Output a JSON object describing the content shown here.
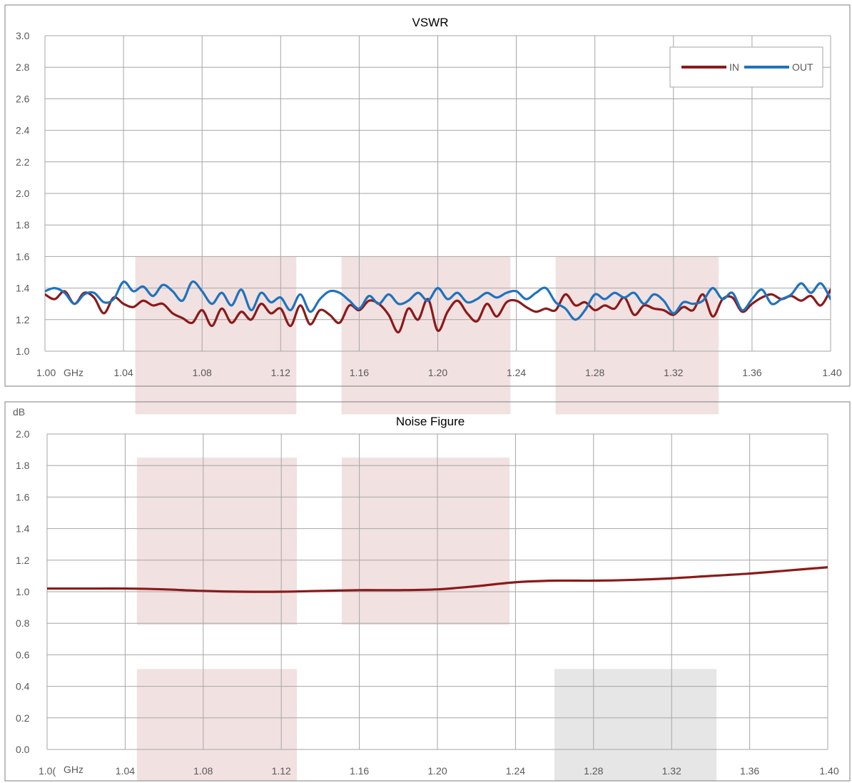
{
  "colors": {
    "in": "#8B1A1A",
    "out": "#1E73BE",
    "grid": "#A6A6A6",
    "frame": "#7F7F7F",
    "band_pink": "#F2E1E1",
    "band_gray": "#E6E6E6"
  },
  "chart_data": [
    {
      "type": "line",
      "title": "VSWR",
      "xunit": "GHz",
      "xlim": [
        1.0,
        1.4
      ],
      "ylim": [
        1.0,
        3.0
      ],
      "xticks": [
        "1.00",
        "1.04",
        "1.08",
        "1.12",
        "1.16",
        "1.20",
        "1.24",
        "1.28",
        "1.32",
        "1.36",
        "1.40"
      ],
      "yticks": [
        "1.0",
        "1.2",
        "1.4",
        "1.6",
        "1.8",
        "2.0",
        "2.2",
        "2.4",
        "2.6",
        "2.8",
        "3.0"
      ],
      "legend": {
        "position": "top-right"
      },
      "series": [
        {
          "name": "IN",
          "color": "#8B1A1A",
          "x": [
            1.0,
            1.005,
            1.01,
            1.015,
            1.02,
            1.025,
            1.03,
            1.035,
            1.04,
            1.045,
            1.05,
            1.055,
            1.06,
            1.065,
            1.07,
            1.075,
            1.08,
            1.085,
            1.09,
            1.095,
            1.1,
            1.105,
            1.11,
            1.115,
            1.12,
            1.125,
            1.13,
            1.135,
            1.14,
            1.145,
            1.15,
            1.155,
            1.16,
            1.165,
            1.17,
            1.175,
            1.18,
            1.185,
            1.19,
            1.195,
            1.2,
            1.205,
            1.21,
            1.215,
            1.22,
            1.225,
            1.23,
            1.235,
            1.24,
            1.245,
            1.25,
            1.255,
            1.26,
            1.265,
            1.27,
            1.275,
            1.28,
            1.285,
            1.29,
            1.295,
            1.3,
            1.305,
            1.31,
            1.315,
            1.32,
            1.325,
            1.33,
            1.335,
            1.34,
            1.345,
            1.35,
            1.355,
            1.36,
            1.365,
            1.37,
            1.375,
            1.38,
            1.385,
            1.39,
            1.395,
            1.4
          ],
          "y": [
            1.36,
            1.33,
            1.38,
            1.3,
            1.37,
            1.34,
            1.24,
            1.34,
            1.3,
            1.28,
            1.32,
            1.29,
            1.3,
            1.24,
            1.21,
            1.18,
            1.26,
            1.16,
            1.27,
            1.18,
            1.25,
            1.2,
            1.3,
            1.24,
            1.27,
            1.16,
            1.29,
            1.17,
            1.26,
            1.23,
            1.18,
            1.29,
            1.26,
            1.32,
            1.3,
            1.23,
            1.12,
            1.27,
            1.2,
            1.33,
            1.13,
            1.25,
            1.32,
            1.24,
            1.19,
            1.3,
            1.22,
            1.31,
            1.32,
            1.28,
            1.25,
            1.27,
            1.26,
            1.36,
            1.29,
            1.31,
            1.26,
            1.29,
            1.27,
            1.34,
            1.23,
            1.29,
            1.27,
            1.26,
            1.23,
            1.28,
            1.26,
            1.36,
            1.22,
            1.33,
            1.34,
            1.25,
            1.3,
            1.34,
            1.36,
            1.33,
            1.35,
            1.32,
            1.35,
            1.29,
            1.39
          ]
        },
        {
          "name": "OUT",
          "color": "#1E73BE",
          "x": [
            1.0,
            1.005,
            1.01,
            1.015,
            1.02,
            1.025,
            1.03,
            1.035,
            1.04,
            1.045,
            1.05,
            1.055,
            1.06,
            1.065,
            1.07,
            1.075,
            1.08,
            1.085,
            1.09,
            1.095,
            1.1,
            1.105,
            1.11,
            1.115,
            1.12,
            1.125,
            1.13,
            1.135,
            1.14,
            1.145,
            1.15,
            1.155,
            1.16,
            1.165,
            1.17,
            1.175,
            1.18,
            1.185,
            1.19,
            1.195,
            1.2,
            1.205,
            1.21,
            1.215,
            1.22,
            1.225,
            1.23,
            1.235,
            1.24,
            1.245,
            1.25,
            1.255,
            1.26,
            1.265,
            1.27,
            1.275,
            1.28,
            1.285,
            1.29,
            1.295,
            1.3,
            1.305,
            1.31,
            1.315,
            1.32,
            1.325,
            1.33,
            1.335,
            1.34,
            1.345,
            1.35,
            1.355,
            1.36,
            1.365,
            1.37,
            1.375,
            1.38,
            1.385,
            1.39,
            1.395,
            1.4
          ],
          "y": [
            1.38,
            1.4,
            1.37,
            1.3,
            1.36,
            1.37,
            1.31,
            1.33,
            1.44,
            1.38,
            1.41,
            1.35,
            1.42,
            1.38,
            1.32,
            1.44,
            1.38,
            1.3,
            1.37,
            1.29,
            1.39,
            1.26,
            1.37,
            1.31,
            1.34,
            1.26,
            1.36,
            1.25,
            1.33,
            1.38,
            1.37,
            1.32,
            1.27,
            1.35,
            1.3,
            1.36,
            1.3,
            1.32,
            1.37,
            1.32,
            1.4,
            1.33,
            1.37,
            1.31,
            1.33,
            1.37,
            1.34,
            1.37,
            1.38,
            1.33,
            1.37,
            1.4,
            1.31,
            1.27,
            1.2,
            1.26,
            1.36,
            1.33,
            1.37,
            1.34,
            1.37,
            1.3,
            1.36,
            1.32,
            1.24,
            1.31,
            1.3,
            1.32,
            1.4,
            1.33,
            1.37,
            1.26,
            1.33,
            1.39,
            1.3,
            1.33,
            1.36,
            1.43,
            1.37,
            1.43,
            1.33
          ]
        }
      ],
      "bands": [
        {
          "x": [
            1.046,
            1.128
          ],
          "y": [
            0.6,
            1.6
          ],
          "color": "pink"
        },
        {
          "x": [
            1.151,
            1.237
          ],
          "y": [
            0.6,
            1.6
          ],
          "color": "pink"
        },
        {
          "x": [
            1.26,
            1.343
          ],
          "y": [
            0.6,
            1.6
          ],
          "color": "pink"
        }
      ]
    },
    {
      "type": "line",
      "title": "Noise Figure",
      "ylabel": "dB",
      "xunit": "GHz",
      "xlim": [
        1.0,
        1.4
      ],
      "ylim": [
        0.0,
        2.0
      ],
      "xticks": [
        "1.0(",
        "1.04",
        "1.08",
        "1.12",
        "1.16",
        "1.20",
        "1.24",
        "1.28",
        "1.32",
        "1.36",
        "1.40"
      ],
      "yticks": [
        "0.0",
        "0.2",
        "0.4",
        "0.6",
        "0.8",
        "1.0",
        "1.2",
        "1.4",
        "1.6",
        "1.8",
        "2.0"
      ],
      "series": [
        {
          "color": "#8B1A1A",
          "x": [
            1.0,
            1.02,
            1.04,
            1.06,
            1.08,
            1.1,
            1.12,
            1.14,
            1.16,
            1.18,
            1.2,
            1.22,
            1.24,
            1.26,
            1.28,
            1.3,
            1.32,
            1.34,
            1.36,
            1.38,
            1.4
          ],
          "y": [
            1.02,
            1.02,
            1.02,
            1.015,
            1.005,
            1.0,
            1.0,
            1.005,
            1.01,
            1.01,
            1.015,
            1.035,
            1.06,
            1.07,
            1.07,
            1.075,
            1.085,
            1.1,
            1.115,
            1.135,
            1.155
          ]
        }
      ],
      "bands": [
        {
          "x": [
            1.046,
            1.128
          ],
          "y": [
            0.79,
            1.85
          ],
          "color": "pink"
        },
        {
          "x": [
            1.151,
            1.237
          ],
          "y": [
            0.79,
            1.85
          ],
          "color": "pink"
        },
        {
          "x": [
            1.046,
            1.128
          ],
          "y": [
            -0.2,
            0.51
          ],
          "color": "pink"
        },
        {
          "x": [
            1.26,
            1.343
          ],
          "y": [
            -0.2,
            0.51
          ],
          "color": "gray"
        }
      ]
    }
  ]
}
